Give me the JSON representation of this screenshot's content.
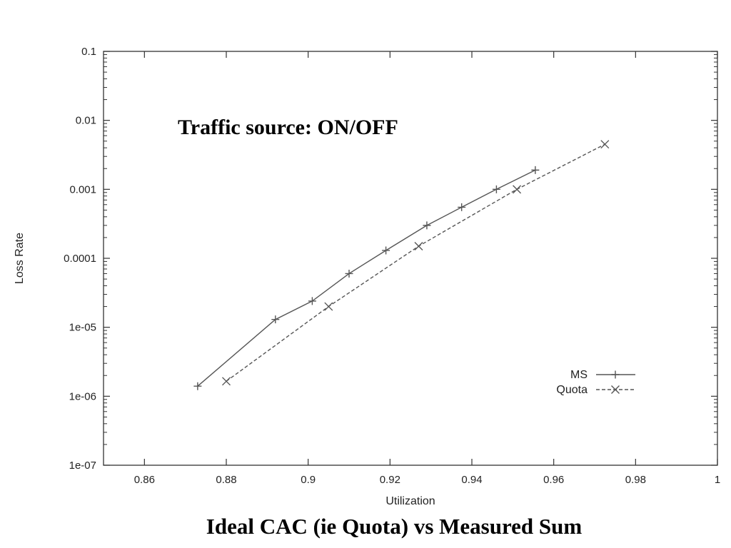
{
  "caption": "Ideal CAC (ie Quota) vs Measured Sum",
  "chart_data": {
    "type": "line",
    "title": "",
    "annotation": "Traffic source: ON/OFF",
    "xlabel": "Utilization",
    "ylabel": "Loss Rate",
    "xlim": [
      0.85,
      1.0
    ],
    "ylim": [
      1e-07,
      0.1
    ],
    "yscale": "log",
    "grid": false,
    "legend_position": "bottom-right",
    "x_ticks": [
      0.86,
      0.88,
      0.9,
      0.92,
      0.94,
      0.96,
      0.98,
      1.0
    ],
    "x_tick_labels": [
      "0.86",
      "0.88",
      "0.9",
      "0.92",
      "0.94",
      "0.96",
      "0.98",
      "1"
    ],
    "y_ticks": [
      1e-07,
      1e-06,
      1e-05,
      0.0001,
      0.001,
      0.01,
      0.1
    ],
    "y_tick_labels": [
      "1e-07",
      "1e-06",
      "1e-05",
      "0.0001",
      "0.001",
      "0.01",
      "0.1"
    ],
    "series": [
      {
        "name": "MS",
        "marker": "plus",
        "line_style": "solid",
        "color": "#555555",
        "x": [
          0.873,
          0.892,
          0.901,
          0.91,
          0.919,
          0.929,
          0.9375,
          0.946,
          0.9555
        ],
        "y": [
          1.4e-06,
          1.3e-05,
          2.4e-05,
          6e-05,
          0.00013,
          0.0003,
          0.00055,
          0.001,
          0.0019
        ]
      },
      {
        "name": "Quota",
        "marker": "cross",
        "line_style": "dashed",
        "color": "#555555",
        "x": [
          0.88,
          0.905,
          0.927,
          0.951,
          0.9725
        ],
        "y": [
          1.65e-06,
          2e-05,
          0.00015,
          0.001,
          0.0045
        ]
      }
    ]
  }
}
